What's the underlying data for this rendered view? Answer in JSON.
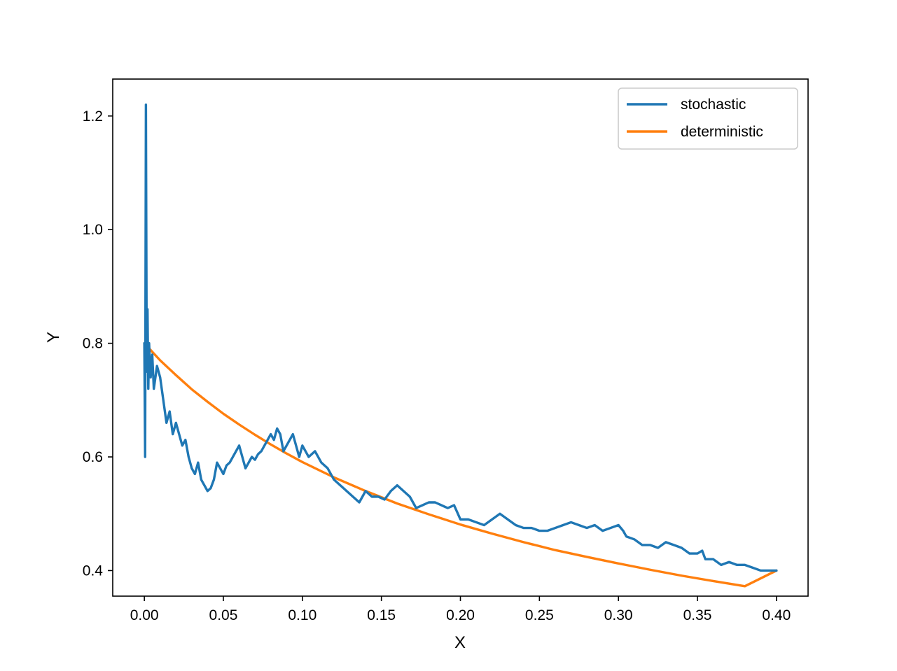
{
  "chart_data": {
    "type": "line",
    "xlabel": "X",
    "ylabel": "Y",
    "xlim": [
      -0.02,
      0.42
    ],
    "ylim": [
      0.355,
      1.265
    ],
    "x_ticks": [
      0.0,
      0.05,
      0.1,
      0.15,
      0.2,
      0.25,
      0.3,
      0.35,
      0.4
    ],
    "x_tick_labels": [
      "0.00",
      "0.05",
      "0.10",
      "0.15",
      "0.20",
      "0.25",
      "0.30",
      "0.35",
      "0.40"
    ],
    "y_ticks": [
      0.4,
      0.6,
      0.8,
      1.0,
      1.2
    ],
    "y_tick_labels": [
      "0.4",
      "0.6",
      "0.8",
      "1.0",
      "1.2"
    ],
    "grid": false,
    "legend_position": "top-right",
    "series": [
      {
        "name": "stochastic",
        "color": "#1f77b4",
        "x": [
          0.0,
          0.0005,
          0.001,
          0.0015,
          0.002,
          0.0025,
          0.003,
          0.004,
          0.005,
          0.006,
          0.008,
          0.01,
          0.012,
          0.014,
          0.016,
          0.018,
          0.02,
          0.022,
          0.024,
          0.026,
          0.028,
          0.03,
          0.032,
          0.034,
          0.036,
          0.038,
          0.04,
          0.042,
          0.044,
          0.046,
          0.048,
          0.05,
          0.052,
          0.054,
          0.056,
          0.058,
          0.06,
          0.062,
          0.064,
          0.066,
          0.068,
          0.07,
          0.072,
          0.074,
          0.076,
          0.078,
          0.08,
          0.082,
          0.084,
          0.086,
          0.088,
          0.09,
          0.092,
          0.094,
          0.096,
          0.098,
          0.1,
          0.104,
          0.108,
          0.112,
          0.116,
          0.12,
          0.124,
          0.128,
          0.132,
          0.136,
          0.14,
          0.144,
          0.148,
          0.152,
          0.156,
          0.16,
          0.164,
          0.168,
          0.172,
          0.176,
          0.18,
          0.184,
          0.188,
          0.192,
          0.196,
          0.2,
          0.205,
          0.21,
          0.215,
          0.22,
          0.225,
          0.23,
          0.235,
          0.24,
          0.245,
          0.25,
          0.255,
          0.26,
          0.265,
          0.27,
          0.275,
          0.28,
          0.285,
          0.29,
          0.295,
          0.3,
          0.303,
          0.305,
          0.31,
          0.315,
          0.32,
          0.325,
          0.33,
          0.335,
          0.34,
          0.345,
          0.35,
          0.353,
          0.355,
          0.36,
          0.365,
          0.37,
          0.375,
          0.38,
          0.385,
          0.39,
          0.395,
          0.4
        ],
        "y": [
          0.8,
          0.6,
          1.22,
          0.75,
          0.86,
          0.72,
          0.8,
          0.74,
          0.78,
          0.72,
          0.76,
          0.74,
          0.7,
          0.66,
          0.68,
          0.64,
          0.66,
          0.64,
          0.62,
          0.63,
          0.6,
          0.58,
          0.57,
          0.59,
          0.56,
          0.55,
          0.54,
          0.545,
          0.56,
          0.59,
          0.58,
          0.57,
          0.585,
          0.59,
          0.6,
          0.61,
          0.62,
          0.6,
          0.58,
          0.59,
          0.6,
          0.595,
          0.605,
          0.61,
          0.62,
          0.63,
          0.64,
          0.63,
          0.65,
          0.64,
          0.61,
          0.62,
          0.63,
          0.64,
          0.62,
          0.6,
          0.62,
          0.6,
          0.61,
          0.59,
          0.58,
          0.56,
          0.55,
          0.54,
          0.53,
          0.52,
          0.54,
          0.53,
          0.53,
          0.525,
          0.54,
          0.55,
          0.54,
          0.53,
          0.51,
          0.515,
          0.52,
          0.52,
          0.515,
          0.51,
          0.515,
          0.49,
          0.49,
          0.485,
          0.48,
          0.49,
          0.5,
          0.49,
          0.48,
          0.475,
          0.475,
          0.47,
          0.47,
          0.475,
          0.48,
          0.485,
          0.48,
          0.475,
          0.48,
          0.47,
          0.475,
          0.48,
          0.47,
          0.46,
          0.455,
          0.445,
          0.445,
          0.44,
          0.45,
          0.445,
          0.44,
          0.43,
          0.43,
          0.435,
          0.42,
          0.42,
          0.41,
          0.415,
          0.41,
          0.41,
          0.405,
          0.4,
          0.4,
          0.4
        ]
      },
      {
        "name": "deterministic",
        "color": "#ff7f0e",
        "x": [
          0.0,
          0.005,
          0.01,
          0.02,
          0.03,
          0.04,
          0.05,
          0.06,
          0.07,
          0.08,
          0.09,
          0.1,
          0.12,
          0.14,
          0.16,
          0.18,
          0.2,
          0.22,
          0.24,
          0.26,
          0.28,
          0.3,
          0.32,
          0.34,
          0.36,
          0.38,
          0.4
        ],
        "y": [
          0.8,
          0.785,
          0.77,
          0.744,
          0.719,
          0.697,
          0.676,
          0.657,
          0.639,
          0.622,
          0.606,
          0.591,
          0.564,
          0.54,
          0.518,
          0.499,
          0.481,
          0.465,
          0.45,
          0.436,
          0.424,
          0.4125,
          0.4015,
          0.391,
          0.3815,
          0.3725,
          0.4
        ]
      }
    ]
  }
}
